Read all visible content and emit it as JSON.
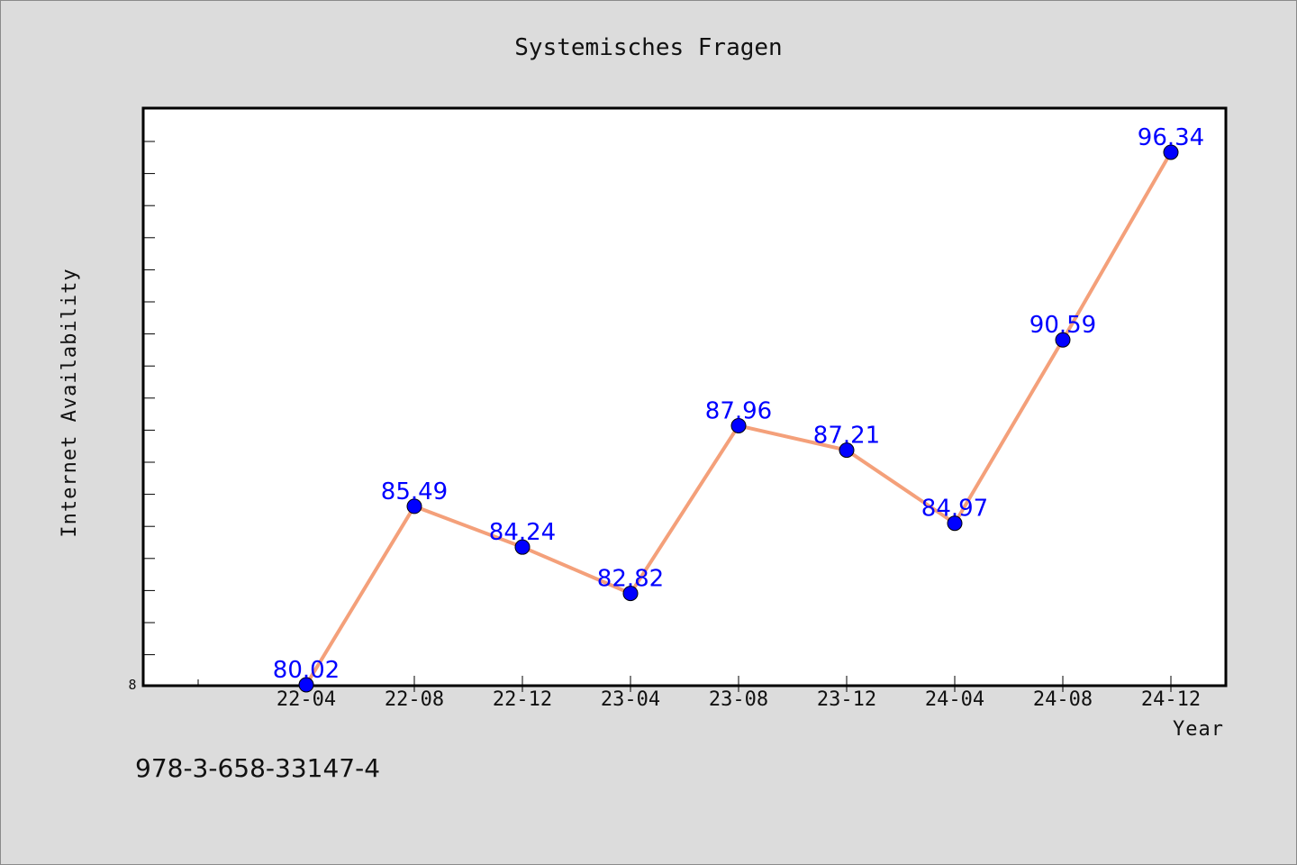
{
  "chart_data": {
    "type": "line",
    "title": "Systemisches Fragen",
    "xlabel": "Year",
    "ylabel": "Internet Availability",
    "categories": [
      "22-04",
      "22-08",
      "22-12",
      "23-04",
      "23-08",
      "23-12",
      "24-04",
      "24-08",
      "24-12"
    ],
    "series": [
      {
        "values": [
          80.02,
          85.49,
          84.24,
          82.82,
          87.96,
          87.21,
          84.97,
          90.59,
          96.34
        ]
      }
    ],
    "y_tick_labels": [
      "8"
    ],
    "ylim": [
      80.02,
      97.9
    ],
    "grid": false,
    "line_color": "#f4a07a",
    "marker_color": "#0000ff",
    "label_color": "#0000ff"
  },
  "footer": {
    "isbn": "978-3-658-33147-4"
  }
}
